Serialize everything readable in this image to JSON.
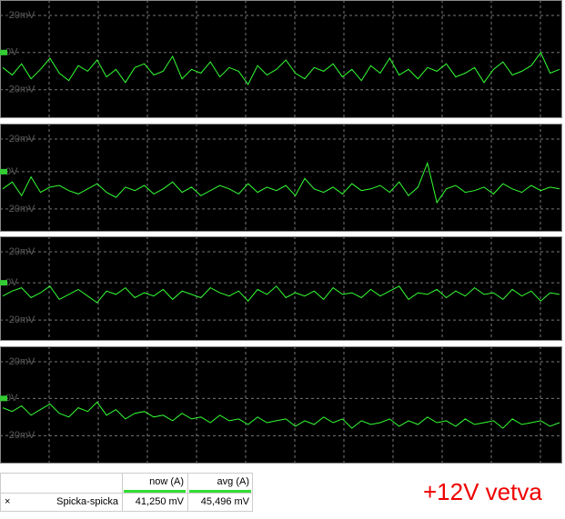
{
  "panels": [
    {
      "labels": [
        "-20mV",
        "0V",
        "-20mV"
      ],
      "ylim": [
        -35,
        28
      ],
      "trace": [
        -8,
        -12,
        -6,
        -14,
        -9,
        -3,
        -11,
        -15,
        -7,
        -10,
        -4,
        -13,
        -9,
        -16,
        -8,
        -6,
        -12,
        -10,
        -2,
        -14,
        -9,
        -11,
        -5,
        -13,
        -8,
        -10,
        -17,
        -7,
        -12,
        -9,
        -4,
        -11,
        -14,
        -8,
        -10,
        -6,
        -13,
        -9,
        -15,
        -7,
        -11,
        -3,
        -12,
        -9,
        -14,
        -8,
        -10,
        -6,
        -13,
        -11,
        -8,
        -16,
        -9,
        -5,
        -12,
        -10,
        -7,
        0,
        -11,
        -9
      ]
    },
    {
      "labels": [
        "-20mV",
        "0V",
        "-20mV"
      ],
      "ylim": [
        -35,
        28
      ],
      "trace": [
        -10,
        -6,
        -14,
        -3,
        -12,
        -9,
        -8,
        -11,
        -13,
        -10,
        -7,
        -12,
        -15,
        -9,
        -11,
        -8,
        -13,
        -10,
        -6,
        -12,
        -9,
        -14,
        -11,
        -8,
        -10,
        -13,
        -7,
        -12,
        -9,
        -11,
        -8,
        -14,
        -4,
        -10,
        -12,
        -9,
        -13,
        -7,
        -11,
        -10,
        -8,
        -12,
        -6,
        -14,
        -9,
        5,
        -18,
        -10,
        -8,
        -12,
        -11,
        -9,
        -13,
        -7,
        -10,
        -12,
        -8,
        -11,
        -9,
        -10
      ]
    },
    {
      "labels": [
        "-20mV",
        "0V",
        "-20mV"
      ],
      "ylim": [
        -35,
        28
      ],
      "trace": [
        -8,
        -5,
        -3,
        -9,
        -6,
        -2,
        -10,
        -7,
        -4,
        -8,
        -12,
        -5,
        -7,
        -3,
        -9,
        -6,
        -8,
        -4,
        -10,
        -5,
        -7,
        -9,
        -3,
        -6,
        -8,
        -5,
        -11,
        -4,
        -7,
        -2,
        -9,
        -6,
        -8,
        -5,
        -10,
        -3,
        -7,
        -6,
        -9,
        -4,
        -8,
        -5,
        -2,
        -10,
        -6,
        -7,
        -4,
        -9,
        -5,
        -8,
        -3,
        -7,
        -6,
        -10,
        -4,
        -8,
        -5,
        -11,
        -6,
        -7
      ]
    },
    {
      "labels": [
        "-20mV",
        "0V",
        "-20mV"
      ],
      "ylim": [
        -35,
        28
      ],
      "trace": [
        -5,
        -7,
        -4,
        -9,
        -6,
        -3,
        -8,
        -10,
        -5,
        -7,
        -2,
        -9,
        -6,
        -11,
        -8,
        -7,
        -10,
        -9,
        -12,
        -8,
        -11,
        -10,
        -13,
        -9,
        -12,
        -11,
        -14,
        -10,
        -13,
        -12,
        -11,
        -15,
        -12,
        -14,
        -10,
        -13,
        -11,
        -16,
        -12,
        -14,
        -13,
        -11,
        -15,
        -12,
        -14,
        -10,
        -13,
        -12,
        -15,
        -11,
        -14,
        -13,
        -12,
        -16,
        -11,
        -14,
        -13,
        -12,
        -15,
        -13
      ]
    }
  ],
  "table": {
    "headers": [
      "now (A)",
      "avg (A)"
    ],
    "rows": [
      [
        "×",
        "Spicka-spicka",
        "41,250 mV",
        "45,496 mV"
      ]
    ]
  },
  "caption": "+12V vetva"
}
